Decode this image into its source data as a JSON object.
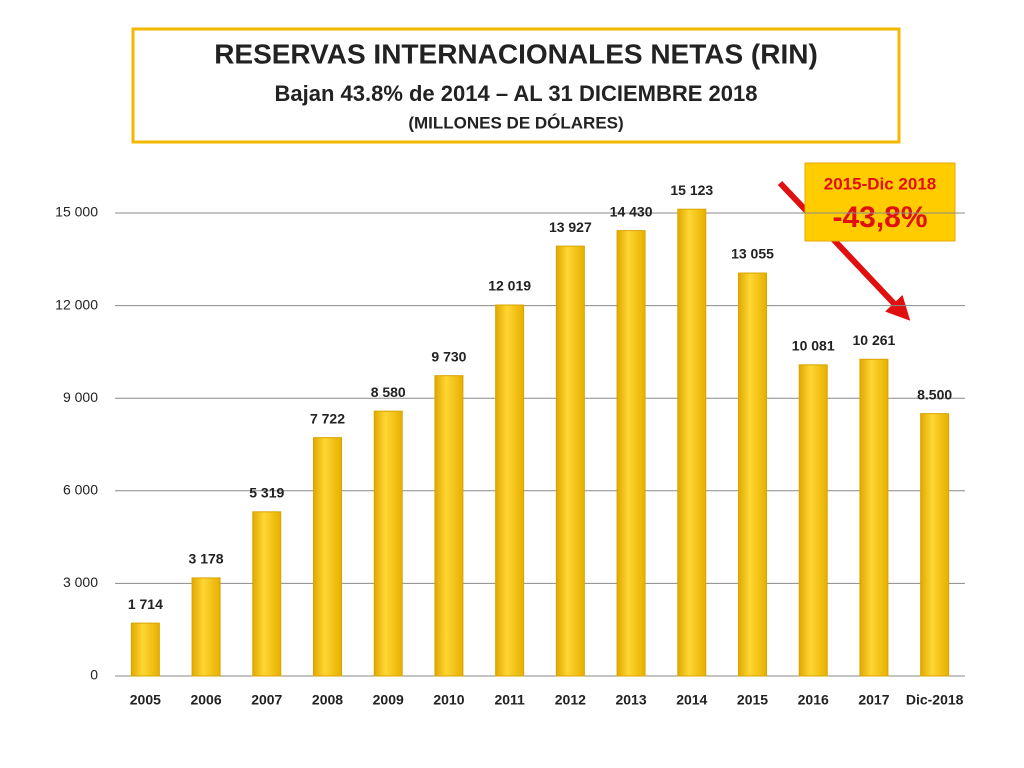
{
  "chart_data": {
    "type": "bar",
    "title": "RESERVAS INTERNACIONALES NETAS (RIN)",
    "subtitle": "Bajan 43.8% de 2014 –  AL 31 DICIEMBRE 2018",
    "unit_label": "(MILLONES DE DÓLARES)",
    "annotation": {
      "label": "2015-Dic 2018",
      "text": "-43,8%"
    },
    "categories": [
      "2005",
      "2006",
      "2007",
      "2008",
      "2009",
      "2010",
      "2011",
      "2012",
      "2013",
      "2014",
      "2015",
      "2016",
      "2017",
      "Dic-2018"
    ],
    "values": [
      1714,
      3178,
      5319,
      7722,
      8580,
      9730,
      12019,
      13927,
      14430,
      15123,
      13055,
      10081,
      10261,
      8500
    ],
    "value_labels": [
      "1 714",
      "3 178",
      "5 319",
      "7 722",
      "8 580",
      "9 730",
      "12 019",
      "13 927",
      "14 430",
      "15 123",
      "13 055",
      "10 081",
      "10 261",
      "8.500"
    ],
    "color": "#ffcc00",
    "ylim": [
      0,
      15000
    ],
    "yticks": [
      0,
      {
        "value": 3000,
        "label": "3 000"
      },
      {
        "value": 6000,
        "label": "6 000"
      },
      {
        "value": 9000,
        "label": "9 000"
      },
      {
        "value": 12000,
        "label": "12 000"
      },
      {
        "value": 15000,
        "label": "15 000"
      }
    ],
    "grid": true
  }
}
